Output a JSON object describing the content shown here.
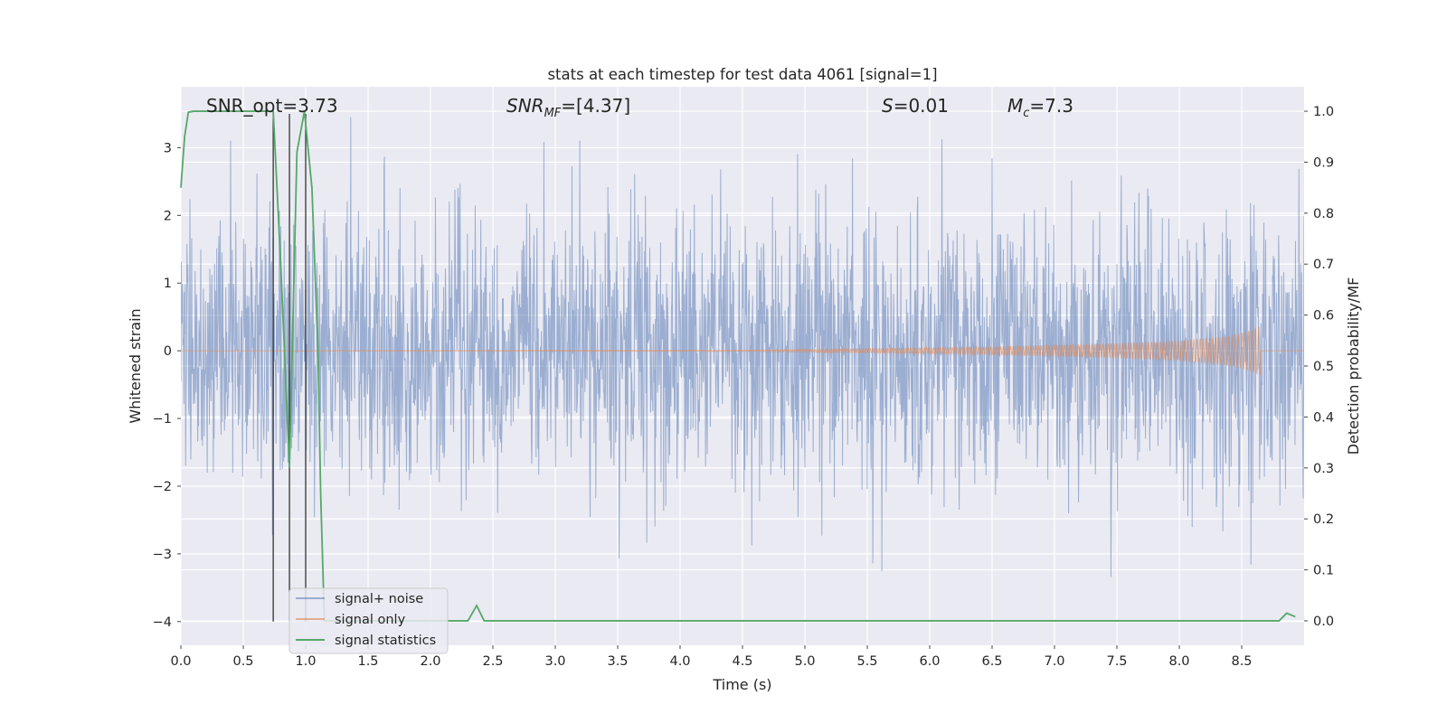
{
  "chart_data": {
    "type": "line",
    "title": "stats at each timestep for test data 4061 [signal=1]",
    "xlabel": "Time (s)",
    "ylabel": "Whitened strain",
    "ylabel_right": "Detection probability/MF",
    "xlim": [
      0.0,
      9.0
    ],
    "ylim": [
      -4.35,
      3.9
    ],
    "ylim_right": [
      -0.048,
      1.048
    ],
    "xticks": [
      "0.0",
      "0.5",
      "1.0",
      "1.5",
      "2.0",
      "2.5",
      "3.0",
      "3.5",
      "4.0",
      "4.5",
      "5.0",
      "5.5",
      "6.0",
      "6.5",
      "7.0",
      "7.5",
      "8.0",
      "8.5"
    ],
    "yticks_left": [
      "3",
      "2",
      "1",
      "0",
      "−1",
      "−2",
      "−3",
      "−4"
    ],
    "yticks_right": [
      "1.0",
      "0.9",
      "0.8",
      "0.7",
      "0.6",
      "0.5",
      "0.4",
      "0.3",
      "0.2",
      "0.1",
      "0.0"
    ],
    "grid": true,
    "legend_position": "lower-left",
    "annotations": {
      "snr_opt": "SNR_opt=3.73",
      "snr_mf_main": "SNR",
      "snr_mf_sub": "MF",
      "snr_mf_rest": "=[4.37]",
      "s_var": "S",
      "s_rest": "=0.01",
      "mc_var": "M",
      "mc_sub": "c",
      "mc_rest": "=7.3"
    },
    "series": [
      {
        "name": "signal+ noise",
        "color": "#4c72b0",
        "kind": "noise",
        "x_range": [
          0.0,
          9.0
        ],
        "approx_std": 1.0,
        "approx_min": -4.0,
        "approx_max": 3.45
      },
      {
        "name": "signal only",
        "color": "#dd8452",
        "kind": "chirp",
        "x_range": [
          0.0,
          9.0
        ],
        "envelope": {
          "t": [
            0.0,
            4.5,
            5.5,
            6.5,
            7.5,
            8.0,
            8.4,
            8.6,
            8.65
          ],
          "amp": [
            0.0,
            0.01,
            0.03,
            0.06,
            0.11,
            0.15,
            0.22,
            0.32,
            0.38
          ]
        },
        "merger_time": 8.65
      },
      {
        "name": "signal statistics",
        "color": "#55a868",
        "kind": "probability",
        "axis": "right",
        "x": [
          0.0,
          0.03,
          0.06,
          0.1,
          0.25,
          0.5,
          0.7,
          0.74,
          0.8,
          0.87,
          0.93,
          0.99,
          1.05,
          1.1,
          1.12,
          1.15,
          2.3,
          2.37,
          2.43,
          2.5,
          8.8,
          8.86,
          8.93
        ],
        "y": [
          0.85,
          0.95,
          0.998,
          1.0,
          1.0,
          1.0,
          1.0,
          1.0,
          0.7,
          0.3,
          0.92,
          1.0,
          0.85,
          0.52,
          0.25,
          0.0,
          0.0,
          0.03,
          0.0,
          0.0,
          0.0,
          0.015,
          0.008
        ]
      }
    ],
    "vertical_markers": [
      {
        "x": 0.74,
        "from": -4.0,
        "to": 3.5,
        "color": "#333333"
      },
      {
        "x": 0.87,
        "from": -4.0,
        "to": 3.5,
        "color": "#333333"
      },
      {
        "x": 1.0,
        "from": -4.0,
        "to": 3.5,
        "color": "#333333"
      }
    ]
  }
}
